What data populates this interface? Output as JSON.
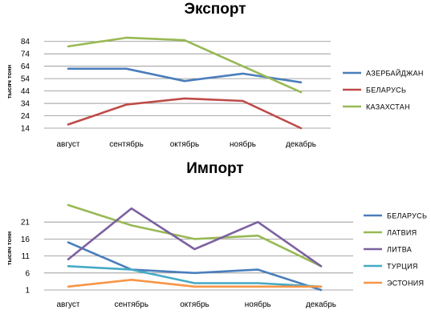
{
  "chart_data": [
    {
      "type": "line",
      "title": "Экспорт",
      "ylabel": "тысяч тонн",
      "xlabel": "",
      "categories": [
        "август",
        "сентябрь",
        "октябрь",
        "ноябрь",
        "декабрь"
      ],
      "yticks": [
        "84",
        "74",
        "64",
        "54",
        "44",
        "34",
        "24",
        "14"
      ],
      "ylim": [
        14,
        89
      ],
      "grid": true,
      "legend_position": "right",
      "series": [
        {
          "name": "АЗЕРБАЙДЖАН",
          "color": "#4a7ebb",
          "values": [
            62,
            62,
            52,
            58,
            51
          ]
        },
        {
          "name": "БЕЛАРУСЬ",
          "color": "#be4b48",
          "values": [
            17,
            33,
            38,
            36,
            14
          ]
        },
        {
          "name": "КАЗАХСТАН",
          "color": "#98b954",
          "values": [
            80,
            87,
            85,
            64,
            43
          ]
        }
      ]
    },
    {
      "type": "line",
      "title": "Импорт",
      "ylabel": "тысяч тонн",
      "xlabel": "",
      "categories": [
        "август",
        "сентябрь",
        "октябрь",
        "ноябрь",
        "декабрь"
      ],
      "yticks": [
        "21",
        "16",
        "11",
        "6",
        "1"
      ],
      "ylim": [
        1,
        26
      ],
      "grid": true,
      "legend_position": "right",
      "series": [
        {
          "name": "БЕЛАРУСЬ",
          "color": "#4a7ebb",
          "values": [
            15,
            7,
            6,
            7,
            1
          ]
        },
        {
          "name": "ЛАТВИЯ",
          "color": "#98b954",
          "values": [
            26,
            20,
            16,
            17,
            8
          ]
        },
        {
          "name": "ЛИТВА",
          "color": "#7d60a0",
          "values": [
            10,
            25,
            13,
            21,
            8
          ]
        },
        {
          "name": "ТУРЦИЯ",
          "color": "#46aac5",
          "values": [
            8,
            7,
            3,
            3,
            2
          ]
        },
        {
          "name": "ЭСТОНИЯ",
          "color": "#f79646",
          "values": [
            2,
            4,
            2,
            2,
            2
          ]
        }
      ]
    }
  ]
}
